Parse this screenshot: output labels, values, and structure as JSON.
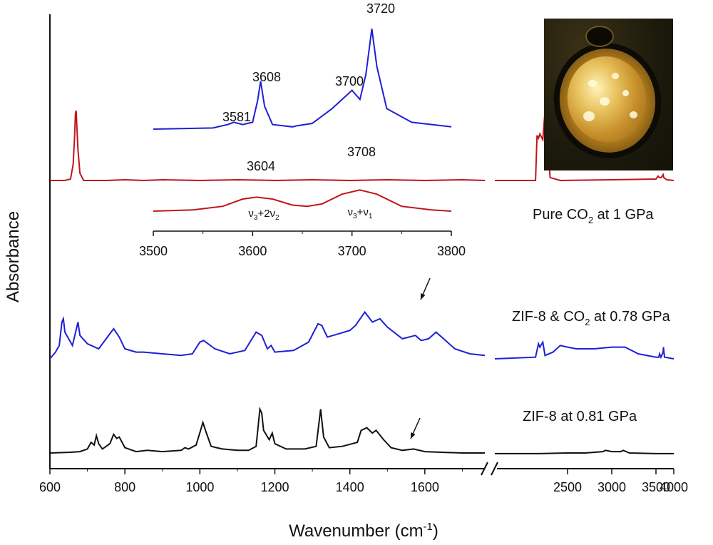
{
  "chart_data": [
    {
      "type": "line",
      "title": "",
      "xlabel": "Wavenumber (cm-1)",
      "xlabel_main": "Wavenumber (cm",
      "xlabel_sup": "-1",
      "xlabel_close": ")",
      "ylabel": "Absorbance",
      "axis_break": "1750-2300",
      "x_segments": [
        {
          "xlim": [
            600,
            1760
          ],
          "ticks": [
            "600",
            "800",
            "1000",
            "1200",
            "1400",
            "1600"
          ]
        },
        {
          "xlim": [
            2000,
            4000
          ],
          "ticks": [
            "2500",
            "3000",
            "3500",
            "4000"
          ]
        }
      ],
      "series": [
        {
          "name": "Pure CO2 at 1 GPa",
          "color": "#c0151c",
          "label_parts": [
            "Pure CO",
            "2",
            " at 1 GPa"
          ],
          "left": [
            [
              600,
              0.64
            ],
            [
              640,
              0.64
            ],
            [
              655,
              0.65
            ],
            [
              662,
              0.75
            ],
            [
              666,
              0.95
            ],
            [
              668,
              1.1
            ],
            [
              670,
              1.12
            ],
            [
              672,
              1.0
            ],
            [
              675,
              0.85
            ],
            [
              680,
              0.69
            ],
            [
              690,
              0.64
            ],
            [
              750,
              0.64
            ],
            [
              800,
              0.645
            ],
            [
              850,
              0.64
            ],
            [
              900,
              0.645
            ],
            [
              1000,
              0.64
            ],
            [
              1100,
              0.645
            ],
            [
              1200,
              0.64
            ],
            [
              1300,
              0.645
            ],
            [
              1400,
              0.64
            ],
            [
              1500,
              0.645
            ],
            [
              1600,
              0.64
            ],
            [
              1700,
              0.645
            ],
            [
              1760,
              0.64
            ]
          ],
          "right": [
            [
              2000,
              0.64
            ],
            [
              2280,
              0.64
            ],
            [
              2290,
              0.95
            ],
            [
              2300,
              0.93
            ],
            [
              2310,
              0.96
            ],
            [
              2330,
              0.92
            ],
            [
              2345,
              1.12
            ],
            [
              2360,
              0.95
            ],
            [
              2380,
              0.66
            ],
            [
              2450,
              0.64
            ],
            [
              3000,
              0.645
            ],
            [
              3500,
              0.65
            ],
            [
              3560,
              0.67
            ],
            [
              3600,
              0.66
            ],
            [
              3650,
              0.66
            ],
            [
              3700,
              0.68
            ],
            [
              3720,
              0.66
            ],
            [
              3800,
              0.645
            ],
            [
              4000,
              0.64
            ]
          ]
        },
        {
          "name": "ZIF-8 & CO2 at 0.78 GPa",
          "color": "#1f1fd6",
          "label_parts": [
            "ZIF-8 & CO",
            "2",
            "  at 0.78 GPa"
          ],
          "left": [
            [
              600,
              0.34
            ],
            [
              615,
              0.38
            ],
            [
              625,
              0.42
            ],
            [
              632,
              0.56
            ],
            [
              636,
              0.58
            ],
            [
              640,
              0.5
            ],
            [
              660,
              0.42
            ],
            [
              675,
              0.56
            ],
            [
              680,
              0.48
            ],
            [
              700,
              0.43
            ],
            [
              730,
              0.4
            ],
            [
              750,
              0.46
            ],
            [
              770,
              0.52
            ],
            [
              785,
              0.47
            ],
            [
              800,
              0.4
            ],
            [
              830,
              0.38
            ],
            [
              850,
              0.38
            ],
            [
              900,
              0.37
            ],
            [
              950,
              0.36
            ],
            [
              980,
              0.37
            ],
            [
              1000,
              0.44
            ],
            [
              1010,
              0.45
            ],
            [
              1040,
              0.4
            ],
            [
              1080,
              0.37
            ],
            [
              1120,
              0.39
            ],
            [
              1150,
              0.5
            ],
            [
              1165,
              0.48
            ],
            [
              1180,
              0.4
            ],
            [
              1190,
              0.42
            ],
            [
              1200,
              0.38
            ],
            [
              1250,
              0.39
            ],
            [
              1290,
              0.44
            ],
            [
              1315,
              0.55
            ],
            [
              1325,
              0.54
            ],
            [
              1340,
              0.47
            ],
            [
              1370,
              0.49
            ],
            [
              1400,
              0.51
            ],
            [
              1415,
              0.54
            ],
            [
              1440,
              0.62
            ],
            [
              1460,
              0.56
            ],
            [
              1480,
              0.58
            ],
            [
              1500,
              0.53
            ],
            [
              1540,
              0.46
            ],
            [
              1575,
              0.48
            ],
            [
              1590,
              0.45
            ],
            [
              1610,
              0.46
            ],
            [
              1630,
              0.5
            ],
            [
              1650,
              0.46
            ],
            [
              1680,
              0.4
            ],
            [
              1720,
              0.37
            ],
            [
              1760,
              0.36
            ]
          ],
          "right": [
            [
              2000,
              0.34
            ],
            [
              2280,
              0.35
            ],
            [
              2300,
              0.43
            ],
            [
              2310,
              0.41
            ],
            [
              2330,
              0.44
            ],
            [
              2345,
              0.36
            ],
            [
              2400,
              0.38
            ],
            [
              2450,
              0.42
            ],
            [
              2500,
              0.41
            ],
            [
              2600,
              0.4
            ],
            [
              2800,
              0.4
            ],
            [
              3000,
              0.41
            ],
            [
              3150,
              0.41
            ],
            [
              3300,
              0.37
            ],
            [
              3500,
              0.35
            ],
            [
              3580,
              0.35
            ],
            [
              3600,
              0.37
            ],
            [
              3640,
              0.35
            ],
            [
              3700,
              0.38
            ],
            [
              3710,
              0.41
            ],
            [
              3740,
              0.35
            ],
            [
              4000,
              0.34
            ]
          ]
        },
        {
          "name": "ZIF-8 at 0.81 GPa",
          "color": "#111111",
          "label_parts": [
            "ZIF-8 at 0.81 GPa",
            "",
            ""
          ],
          "left": [
            [
              600,
              0.03
            ],
            [
              650,
              0.035
            ],
            [
              680,
              0.04
            ],
            [
              700,
              0.06
            ],
            [
              710,
              0.11
            ],
            [
              718,
              0.09
            ],
            [
              724,
              0.16
            ],
            [
              730,
              0.1
            ],
            [
              740,
              0.06
            ],
            [
              760,
              0.1
            ],
            [
              770,
              0.17
            ],
            [
              778,
              0.14
            ],
            [
              785,
              0.15
            ],
            [
              800,
              0.07
            ],
            [
              830,
              0.04
            ],
            [
              860,
              0.05
            ],
            [
              900,
              0.04
            ],
            [
              950,
              0.05
            ],
            [
              960,
              0.07
            ],
            [
              970,
              0.06
            ],
            [
              990,
              0.09
            ],
            [
              1008,
              0.26
            ],
            [
              1015,
              0.2
            ],
            [
              1030,
              0.08
            ],
            [
              1045,
              0.07
            ],
            [
              1060,
              0.06
            ],
            [
              1100,
              0.05
            ],
            [
              1130,
              0.05
            ],
            [
              1150,
              0.08
            ],
            [
              1160,
              0.36
            ],
            [
              1165,
              0.33
            ],
            [
              1170,
              0.2
            ],
            [
              1185,
              0.13
            ],
            [
              1193,
              0.18
            ],
            [
              1200,
              0.1
            ],
            [
              1230,
              0.06
            ],
            [
              1280,
              0.06
            ],
            [
              1310,
              0.08
            ],
            [
              1322,
              0.36
            ],
            [
              1330,
              0.15
            ],
            [
              1345,
              0.07
            ],
            [
              1380,
              0.08
            ],
            [
              1420,
              0.11
            ],
            [
              1430,
              0.2
            ],
            [
              1445,
              0.22
            ],
            [
              1460,
              0.18
            ],
            [
              1470,
              0.2
            ],
            [
              1490,
              0.13
            ],
            [
              1500,
              0.1
            ],
            [
              1510,
              0.07
            ],
            [
              1540,
              0.05
            ],
            [
              1570,
              0.06
            ],
            [
              1600,
              0.04
            ],
            [
              1650,
              0.035
            ],
            [
              1700,
              0.03
            ],
            [
              1760,
              0.03
            ]
          ],
          "right": [
            [
              2000,
              0.025
            ],
            [
              2300,
              0.025
            ],
            [
              2500,
              0.03
            ],
            [
              2700,
              0.03
            ],
            [
              2900,
              0.04
            ],
            [
              2930,
              0.05
            ],
            [
              3000,
              0.04
            ],
            [
              3100,
              0.04
            ],
            [
              3130,
              0.05
            ],
            [
              3200,
              0.03
            ],
            [
              3500,
              0.025
            ],
            [
              4000,
              0.025
            ]
          ]
        }
      ],
      "inset": {
        "xlim": [
          3500,
          3800
        ],
        "ticks": [
          "3500",
          "3600",
          "3700",
          "3800"
        ],
        "series": [
          {
            "color": "#1f1fd6",
            "points": [
              [
                3500,
                0.1
              ],
              [
                3560,
                0.11
              ],
              [
                3575,
                0.14
              ],
              [
                3581,
                0.16
              ],
              [
                3590,
                0.14
              ],
              [
                3600,
                0.16
              ],
              [
                3605,
                0.35
              ],
              [
                3608,
                0.52
              ],
              [
                3612,
                0.3
              ],
              [
                3620,
                0.14
              ],
              [
                3640,
                0.12
              ],
              [
                3645,
                0.13
              ],
              [
                3660,
                0.15
              ],
              [
                3680,
                0.28
              ],
              [
                3700,
                0.44
              ],
              [
                3708,
                0.36
              ],
              [
                3714,
                0.58
              ],
              [
                3720,
                0.98
              ],
              [
                3725,
                0.65
              ],
              [
                3735,
                0.28
              ],
              [
                3760,
                0.16
              ],
              [
                3800,
                0.12
              ]
            ]
          },
          {
            "color": "#c0151c",
            "points": [
              [
                3500,
                0.0
              ],
              [
                3540,
                0.02
              ],
              [
                3570,
                0.08
              ],
              [
                3590,
                0.2
              ],
              [
                3604,
                0.23
              ],
              [
                3620,
                0.2
              ],
              [
                3640,
                0.1
              ],
              [
                3655,
                0.08
              ],
              [
                3670,
                0.12
              ],
              [
                3690,
                0.28
              ],
              [
                3708,
                0.35
              ],
              [
                3725,
                0.28
              ],
              [
                3750,
                0.08
              ],
              [
                3780,
                0.02
              ],
              [
                3800,
                0.0
              ]
            ]
          }
        ],
        "peak_labels": [
          "3720",
          "3608",
          "3700",
          "3581",
          "3708",
          "3604"
        ],
        "mode_labels": [
          "v3+2v2",
          "v3+v1"
        ]
      }
    }
  ],
  "photo": {
    "present": true
  }
}
